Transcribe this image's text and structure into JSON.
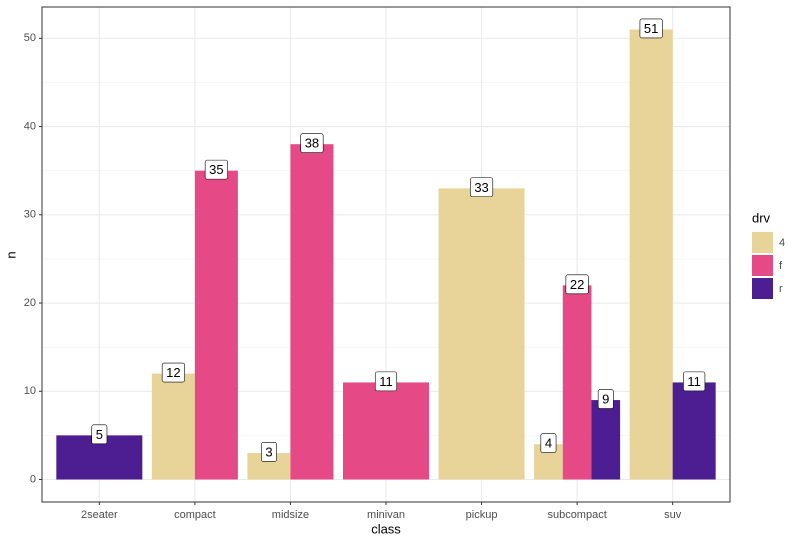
{
  "chart_data": {
    "type": "bar",
    "x_label": "class",
    "y_label": "n",
    "categories": [
      "2seater",
      "compact",
      "midsize",
      "minivan",
      "pickup",
      "subcompact",
      "suv"
    ],
    "legend_title": "drv",
    "legend_position": "right",
    "series": [
      {
        "name": "4",
        "color": "#E8D399",
        "values": [
          null,
          12,
          3,
          null,
          33,
          4,
          51
        ]
      },
      {
        "name": "f",
        "color": "#E64A86",
        "values": [
          null,
          35,
          38,
          11,
          null,
          22,
          null
        ]
      },
      {
        "name": "r",
        "color": "#4D1D92",
        "values": [
          5,
          null,
          null,
          null,
          null,
          9,
          11
        ]
      }
    ],
    "ylim": [
      -2.55,
      53.55
    ],
    "yticks": [
      0,
      10,
      20,
      30,
      40,
      50
    ],
    "grid": true
  }
}
